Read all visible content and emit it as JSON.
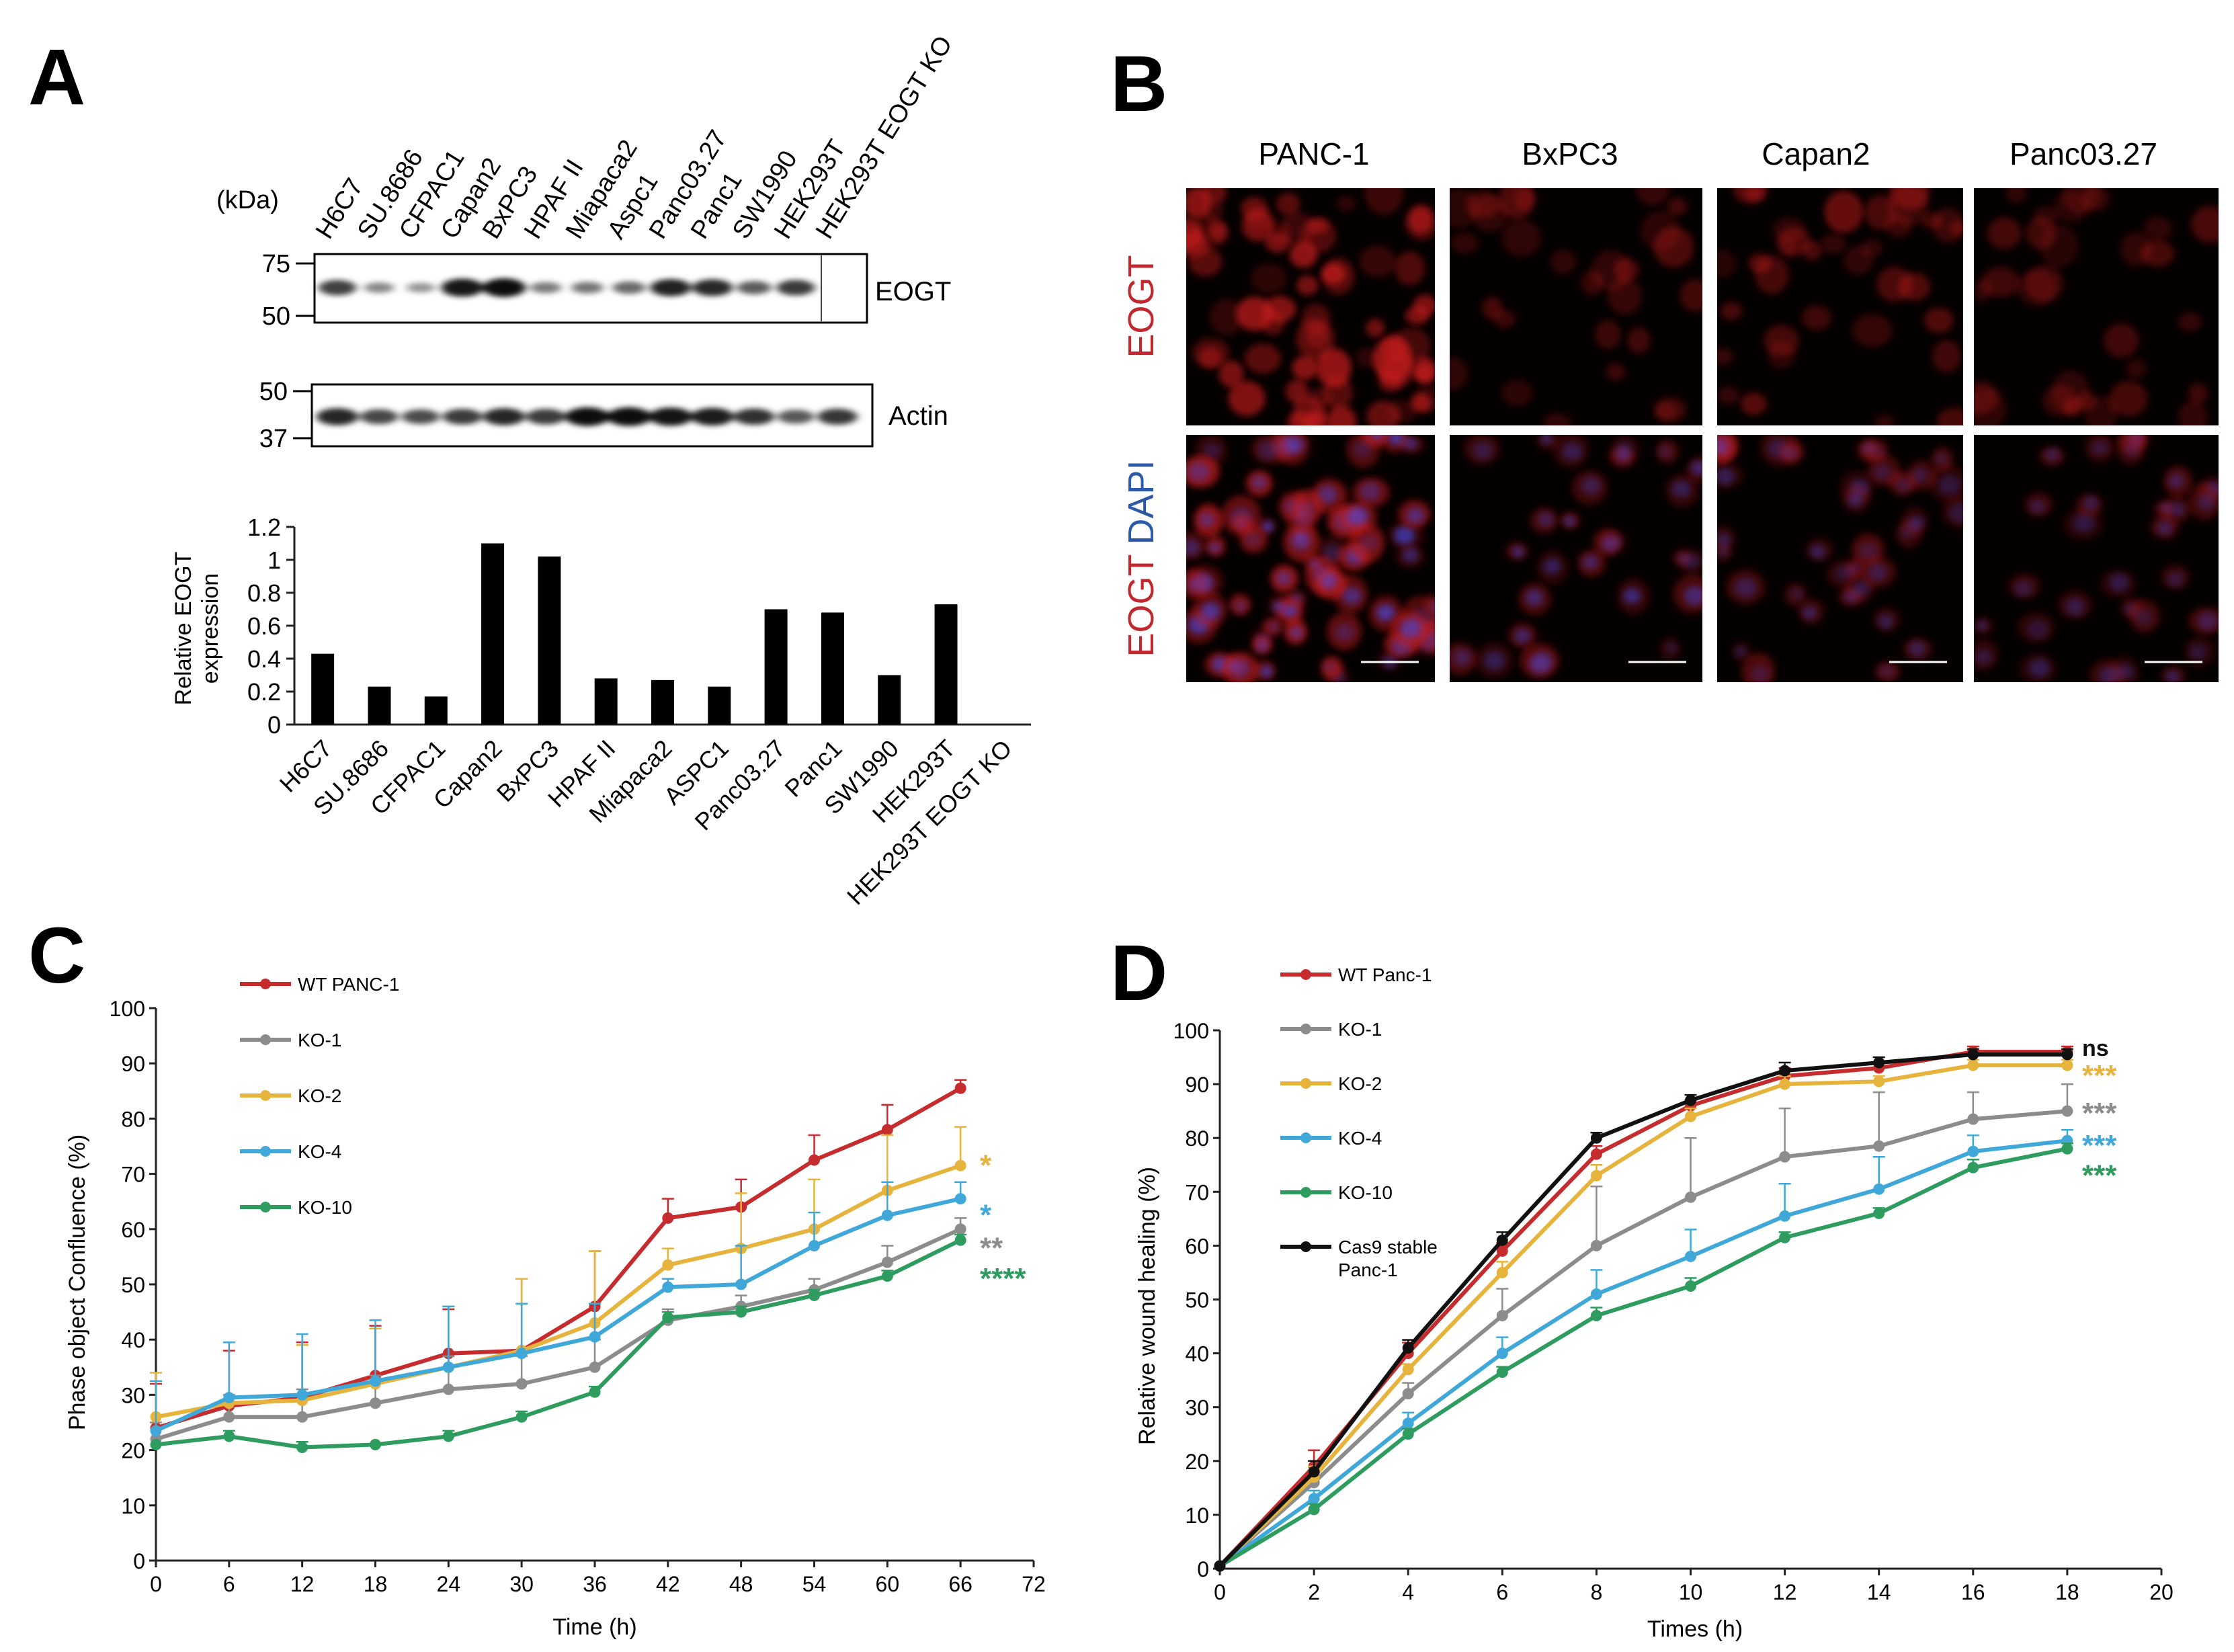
{
  "panels": {
    "A": {
      "letter": "A",
      "kda_label": "(kDa)",
      "lanes": [
        "H6C7",
        "SU.8686",
        "CFPAC1",
        "Capan2",
        "BxPC3",
        "HPAF II",
        "Miapaca2",
        "Aspc1",
        "Panc03.27",
        "Panc1",
        "SW1990",
        "HEK293T",
        "HEK293T EOGT KO"
      ],
      "blot_eogt": {
        "label": "EOGT",
        "markers": [
          "75",
          "50"
        ],
        "band_intensity": [
          0.72,
          0.32,
          0.25,
          0.95,
          1.0,
          0.38,
          0.42,
          0.48,
          0.88,
          0.85,
          0.55,
          0.75,
          0.0
        ]
      },
      "blot_actin": {
        "label": "Actin",
        "markers": [
          "50",
          "37"
        ],
        "band_intensity": [
          0.85,
          0.65,
          0.62,
          0.72,
          0.85,
          0.72,
          1.0,
          1.0,
          0.95,
          0.9,
          0.78,
          0.55,
          0.75
        ]
      }
    },
    "B": {
      "letter": "B",
      "columns": [
        "PANC-1",
        "BxPC3",
        "Capan2",
        "Panc03.27"
      ],
      "row_labels": [
        {
          "parts": [
            {
              "text": "EOGT",
              "color": "#c0282d"
            }
          ]
        },
        {
          "parts": [
            {
              "text": "EOGT",
              "color": "#c0282d"
            },
            {
              "text": " DAPI",
              "color": "#2b5ba8"
            }
          ]
        }
      ],
      "red_intensity": [
        1.0,
        0.35,
        0.45,
        0.3
      ],
      "blue_intensity": [
        0.8,
        0.55,
        0.3,
        0.25
      ],
      "cell_density": [
        1.0,
        0.3,
        0.45,
        0.35
      ]
    },
    "C": {
      "letter": "C"
    },
    "D": {
      "letter": "D"
    }
  },
  "chart_data": [
    {
      "id": "A_bar",
      "type": "bar",
      "title": "",
      "xlabel": "",
      "ylabel": "Relative EOGT expression",
      "ylabel_lines": [
        "Relative EOGT",
        "expression"
      ],
      "ylim": [
        0,
        1.2
      ],
      "yticks": [
        "0",
        "0.2",
        "0.4",
        "0.6",
        "0.8",
        "1",
        "1.2"
      ],
      "categories": [
        "H6C7",
        "SU.8686",
        "CFPAC1",
        "Capan2",
        "BxPC3",
        "HPAF II",
        "Miapaca2",
        "ASPC1",
        "Panc03.27",
        "Panc1",
        "SW1990",
        "HEK293T",
        "HEK293T EOGT KO"
      ],
      "values": [
        0.43,
        0.23,
        0.17,
        1.1,
        1.02,
        0.28,
        0.27,
        0.23,
        0.7,
        0.68,
        0.3,
        0.73,
        0
      ],
      "color": "#000000"
    },
    {
      "id": "C_line",
      "type": "line",
      "title": "",
      "xlabel": "Time (h)",
      "ylabel": "Phase object Confluence (%)",
      "xlim": [
        0,
        72
      ],
      "ylim": [
        0,
        100
      ],
      "xticks": [
        "0",
        "6",
        "12",
        "18",
        "24",
        "30",
        "36",
        "42",
        "48",
        "54",
        "60",
        "66",
        "72"
      ],
      "yticks": [
        "0",
        "10",
        "20",
        "30",
        "40",
        "50",
        "60",
        "70",
        "80",
        "90",
        "100"
      ],
      "legend_position": "top-left",
      "x": [
        0,
        6,
        12,
        18,
        24,
        30,
        36,
        42,
        48,
        54,
        60,
        66
      ],
      "series": [
        {
          "name": "WT PANC-1",
          "color": "#c62b2e",
          "values": [
            24,
            28,
            29.5,
            33.5,
            37.5,
            38,
            46,
            62,
            64,
            72.5,
            78,
            85.5
          ],
          "err": [
            8,
            10,
            10,
            9,
            8,
            13,
            10,
            3.5,
            5,
            4.5,
            4.5,
            1.5
          ]
        },
        {
          "name": "KO-1",
          "color": "#8c8c8c",
          "values": [
            22,
            26,
            26,
            28.5,
            31,
            32,
            35,
            43.5,
            46,
            49,
            54,
            60
          ],
          "err": [
            3,
            4,
            5,
            5,
            6,
            5,
            5,
            2,
            2,
            2,
            3,
            2
          ]
        },
        {
          "name": "KO-2",
          "color": "#e6b43c",
          "values": [
            26,
            28.5,
            29,
            32,
            35,
            38,
            43,
            53.5,
            56.5,
            60,
            67,
            71.5
          ],
          "err": [
            8,
            11,
            10,
            10,
            11,
            13,
            13,
            3,
            10,
            9,
            10,
            7
          ]
        },
        {
          "name": "KO-4",
          "color": "#3fa8d8",
          "values": [
            23.5,
            29.5,
            30,
            32.5,
            35,
            37.5,
            40.5,
            49.5,
            50,
            57,
            62.5,
            65.5
          ],
          "err": [
            9,
            10,
            11,
            11,
            11,
            9,
            6,
            1.5,
            7,
            6,
            6,
            3
          ]
        },
        {
          "name": "KO-10",
          "color": "#2e9c5f",
          "values": [
            21,
            22.5,
            20.5,
            21,
            22.5,
            26,
            30.5,
            44,
            45,
            48,
            51.5,
            58
          ],
          "err": [
            0.5,
            1,
            1,
            0.5,
            1,
            1,
            1,
            1,
            1,
            1,
            1,
            1
          ]
        }
      ],
      "significance": [
        {
          "text": "*",
          "color": "#e6b43c",
          "y": 71.5
        },
        {
          "text": "*",
          "color": "#3fa8d8",
          "y": 62.5
        },
        {
          "text": "**",
          "color": "#8c8c8c",
          "y": 56.5
        },
        {
          "text": "****",
          "color": "#2e9c5f",
          "y": 51
        }
      ]
    },
    {
      "id": "D_line",
      "type": "line",
      "title": "",
      "xlabel": "Times (h)",
      "ylabel": "Relative wound healing (%)",
      "xlim": [
        0,
        20
      ],
      "ylim": [
        0,
        100
      ],
      "xticks": [
        "0",
        "2",
        "4",
        "6",
        "8",
        "10",
        "12",
        "14",
        "16",
        "18",
        "20"
      ],
      "yticks": [
        "0",
        "10",
        "20",
        "30",
        "40",
        "50",
        "60",
        "70",
        "80",
        "90",
        "100"
      ],
      "legend_position": "top-left",
      "x": [
        0,
        2,
        4,
        6,
        8,
        10,
        12,
        14,
        16,
        18
      ],
      "series": [
        {
          "name": "WT Panc-1",
          "color": "#c62b2e",
          "values": [
            0.5,
            19,
            40,
            59,
            77,
            86,
            91.5,
            93,
            96,
            96
          ],
          "err": [
            0,
            3,
            2,
            1.5,
            1.5,
            1,
            1.5,
            1,
            1,
            1
          ]
        },
        {
          "name": "KO-1",
          "color": "#8c8c8c",
          "values": [
            0.5,
            16,
            32.5,
            47,
            60,
            69,
            76.5,
            78.5,
            83.5,
            85
          ],
          "err": [
            0,
            2,
            2,
            5,
            11,
            11,
            9,
            10,
            5,
            5
          ]
        },
        {
          "name": "KO-2",
          "color": "#e6b43c",
          "values": [
            0.5,
            17,
            37,
            55,
            73,
            84,
            90,
            90.5,
            93.5,
            93.5
          ],
          "err": [
            0,
            2,
            1,
            2,
            2,
            1.5,
            1.5,
            1,
            1,
            1
          ]
        },
        {
          "name": "KO-4",
          "color": "#3fa8d8",
          "values": [
            0.5,
            13,
            27,
            40,
            51,
            58,
            65.5,
            70.5,
            77.5,
            79.5
          ],
          "err": [
            0,
            1.5,
            2,
            3,
            4.5,
            5,
            6,
            6,
            3,
            2
          ]
        },
        {
          "name": "KO-10",
          "color": "#2e9c5f",
          "values": [
            0.5,
            11,
            25,
            36.5,
            47,
            52.5,
            61.5,
            66,
            74.5,
            78
          ],
          "err": [
            0,
            1,
            1,
            1,
            1.5,
            1.5,
            1,
            1,
            1.5,
            1
          ]
        },
        {
          "name": "Cas9 stable\nPanc-1",
          "color": "#111111",
          "values": [
            0.5,
            18,
            41,
            61,
            80,
            87,
            92.5,
            94,
            95.5,
            95.5
          ],
          "err": [
            0,
            2,
            1.5,
            1.5,
            1,
            1,
            1.5,
            1,
            1,
            1
          ]
        }
      ],
      "significance": [
        {
          "text": "ns",
          "color": "#111111",
          "y": 97
        },
        {
          "text": "***",
          "color": "#e6b43c",
          "y": 91.5
        },
        {
          "text": "***",
          "color": "#8c8c8c",
          "y": 84.5
        },
        {
          "text": "***",
          "color": "#3fa8d8",
          "y": 78.5
        },
        {
          "text": "***",
          "color": "#2e9c5f",
          "y": 73
        }
      ]
    }
  ]
}
